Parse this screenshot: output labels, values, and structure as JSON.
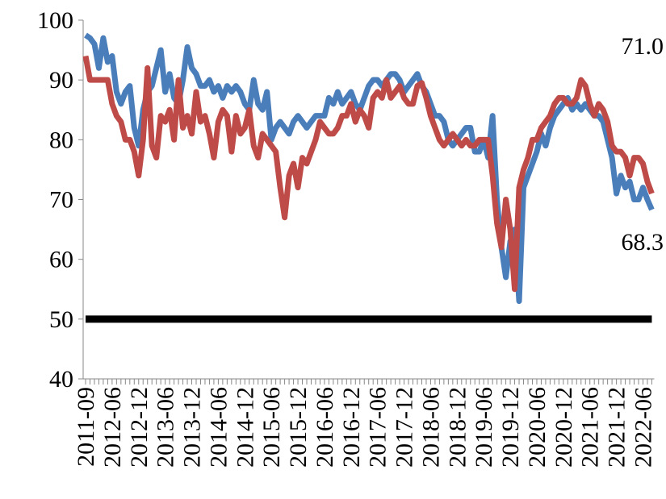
{
  "chart_data": {
    "type": "line",
    "categories": [
      "2011-09",
      null,
      null,
      null,
      null,
      null,
      "2012-06",
      null,
      null,
      null,
      null,
      null,
      "2012-12",
      null,
      null,
      null,
      null,
      null,
      "2013-06",
      null,
      null,
      null,
      null,
      null,
      "2013-12",
      null,
      null,
      null,
      null,
      null,
      "2014-06",
      null,
      null,
      null,
      null,
      null,
      "2014-12",
      null,
      null,
      null,
      null,
      null,
      "2015-06",
      null,
      null,
      null,
      null,
      null,
      "2015-12",
      null,
      null,
      null,
      null,
      null,
      "2016-06",
      null,
      null,
      null,
      null,
      null,
      "2016-12",
      null,
      null,
      null,
      null,
      null,
      "2017-06",
      null,
      null,
      null,
      null,
      null,
      "2017-12",
      null,
      null,
      null,
      null,
      null,
      "2018-06",
      null,
      null,
      null,
      null,
      null,
      "2018-12",
      null,
      null,
      null,
      null,
      null,
      "2019-06",
      null,
      null,
      null,
      null,
      null,
      "2019-12",
      null,
      null,
      null,
      null,
      null,
      "2020-06",
      null,
      null,
      null,
      null,
      null,
      "2020-12",
      null,
      null,
      null,
      null,
      null,
      "2021-06",
      null,
      null,
      null,
      null,
      null,
      "2021-12",
      null,
      null,
      null,
      null,
      null,
      "2022-06",
      null,
      null
    ],
    "series": [
      {
        "color": "#4a7ebb",
        "values": [
          97.5,
          97,
          96,
          92,
          97,
          93,
          94,
          88,
          86,
          88,
          89,
          82,
          79,
          85,
          88,
          89,
          92,
          95,
          88,
          91,
          87,
          86,
          90,
          95.5,
          92,
          91,
          89,
          89,
          90,
          88,
          89,
          87,
          89,
          88,
          89,
          88,
          86,
          85,
          90,
          86,
          85,
          88,
          80,
          82,
          83,
          82,
          81,
          83,
          84,
          83,
          82,
          83,
          84,
          84,
          84,
          87,
          86,
          88,
          86,
          87,
          88,
          86,
          85,
          87,
          89,
          90,
          90,
          89,
          90,
          91,
          91,
          90,
          88,
          89,
          90,
          91,
          89,
          88,
          86,
          84,
          84,
          83,
          80,
          79,
          80,
          81,
          82,
          82,
          78,
          78,
          80,
          77,
          84,
          70,
          62,
          57,
          63,
          65,
          53,
          72,
          74,
          76,
          78,
          81,
          79,
          82,
          84,
          85,
          86,
          87,
          85,
          86,
          85,
          86,
          85,
          84,
          84,
          83,
          80,
          77,
          71,
          74,
          72,
          73,
          70,
          70,
          72,
          70,
          68.3
        ],
        "value_labels": [
          null,
          null,
          null,
          null,
          null,
          null,
          null,
          null,
          null,
          null,
          null,
          null,
          null,
          null,
          null,
          null,
          null,
          null,
          null,
          null,
          null,
          null,
          null,
          null,
          null,
          null,
          null,
          null,
          null,
          null,
          null,
          null,
          null,
          null,
          null,
          null,
          null,
          null,
          null,
          null,
          null,
          null,
          null,
          null,
          null,
          null,
          null,
          null,
          null,
          null,
          null,
          null,
          null,
          null,
          null,
          null,
          null,
          null,
          null,
          null,
          null,
          null,
          null,
          null,
          null,
          null,
          null,
          null,
          null,
          null,
          null,
          null,
          null,
          null,
          null,
          null,
          null,
          null,
          null,
          null,
          null,
          null,
          null,
          null,
          null,
          null,
          null,
          null,
          null,
          null,
          null,
          null,
          null,
          null,
          null,
          null,
          null,
          null,
          null,
          null,
          null,
          null,
          null,
          null,
          null,
          null,
          null,
          null,
          null,
          null,
          null,
          null,
          null,
          null,
          null,
          null,
          null,
          null,
          null,
          null,
          null,
          null,
          null,
          null,
          null,
          null,
          null,
          null,
          "68.3"
        ]
      },
      {
        "color": "#be4b48",
        "values": [
          94,
          90,
          90,
          90,
          90,
          90,
          86,
          84,
          83,
          80,
          80,
          78,
          74,
          80,
          92,
          79,
          77,
          84,
          83,
          85,
          80,
          90,
          82,
          84,
          81,
          88,
          83,
          84,
          81,
          77,
          83,
          85,
          84,
          78,
          84,
          81,
          82,
          85,
          79,
          77,
          81,
          80,
          79,
          78,
          72,
          67,
          74,
          76,
          72,
          77,
          76,
          78,
          80,
          83,
          82,
          81,
          81,
          82,
          84,
          84,
          86,
          83,
          85,
          84,
          82,
          87,
          88,
          87,
          90,
          87,
          88,
          89,
          87,
          86,
          86,
          89,
          89.5,
          87,
          84,
          82,
          80,
          79,
          80,
          81,
          80,
          79,
          80,
          79,
          79,
          80,
          80,
          80,
          74,
          66,
          62,
          70,
          65,
          55,
          72,
          75,
          77,
          80,
          80,
          82,
          83,
          84,
          86,
          87,
          87,
          86,
          86,
          87,
          90,
          89,
          86,
          84,
          86,
          85,
          83,
          79,
          78,
          78,
          77,
          74,
          77,
          77,
          76,
          73,
          71.0
        ],
        "value_labels": [
          null,
          null,
          null,
          null,
          null,
          null,
          null,
          null,
          null,
          null,
          null,
          null,
          null,
          null,
          null,
          null,
          null,
          null,
          null,
          null,
          null,
          null,
          null,
          null,
          null,
          null,
          null,
          null,
          null,
          null,
          null,
          null,
          null,
          null,
          null,
          null,
          null,
          null,
          null,
          null,
          null,
          null,
          null,
          null,
          null,
          null,
          null,
          null,
          null,
          null,
          null,
          null,
          null,
          null,
          null,
          null,
          null,
          null,
          null,
          null,
          null,
          null,
          null,
          null,
          null,
          null,
          null,
          null,
          null,
          null,
          null,
          null,
          null,
          null,
          null,
          null,
          null,
          null,
          null,
          null,
          null,
          null,
          null,
          null,
          null,
          null,
          null,
          null,
          null,
          null,
          null,
          null,
          null,
          null,
          null,
          null,
          null,
          null,
          null,
          null,
          null,
          null,
          null,
          null,
          null,
          null,
          null,
          null,
          null,
          null,
          null,
          null,
          null,
          null,
          null,
          null,
          null,
          null,
          null,
          null,
          null,
          null,
          null,
          null,
          null,
          null,
          null,
          null,
          "71.0"
        ]
      }
    ],
    "hline": 50,
    "hline_color": "#000000",
    "ylim": [
      40,
      100
    ],
    "yticks": [
      40,
      50,
      60,
      70,
      80,
      90,
      100
    ]
  }
}
